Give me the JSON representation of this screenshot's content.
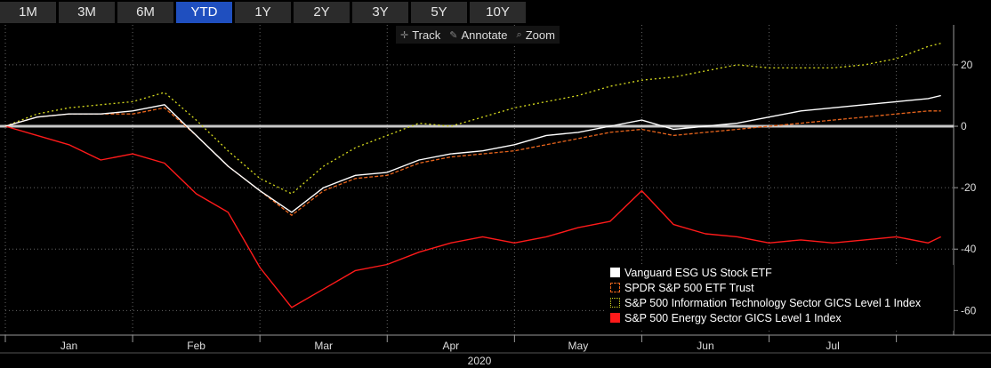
{
  "range_buttons": [
    "1M",
    "3M",
    "6M",
    "YTD",
    "1Y",
    "2Y",
    "3Y",
    "5Y",
    "10Y"
  ],
  "active_range": "YTD",
  "toolbar": {
    "track": "Track",
    "annotate": "Annotate",
    "zoom": "Zoom"
  },
  "colors": {
    "esg": "#ffffff",
    "spdr": "#e8641c",
    "it": "#d8dc1e",
    "energy": "#ff1a1a",
    "zero": "#c8c8c8",
    "grid": "#666666",
    "active_tab": "#1f4fbf"
  },
  "legend": [
    {
      "label": "Vanguard ESG US Stock ETF",
      "style": "solid-white"
    },
    {
      "label": "SPDR S&P 500 ETF Trust",
      "style": "dashed-orange"
    },
    {
      "label": "S&P 500 Information Technology Sector GICS Level 1 Index",
      "style": "dotted-yellow"
    },
    {
      "label": "S&P 500 Energy Sector GICS Level 1 Index",
      "style": "solid-red"
    }
  ],
  "chart_data": {
    "type": "line",
    "xlabel": "2020",
    "ylabel": "",
    "x_tick_labels": [
      "Jan",
      "Feb",
      "Mar",
      "Apr",
      "May",
      "Jun",
      "Jul"
    ],
    "y_tick_labels": [
      "20",
      "0",
      "-20",
      "-40",
      "-60"
    ],
    "ylim": [
      -68,
      33
    ],
    "xlim": [
      0,
      7.45
    ],
    "grid": true,
    "legend_position": "bottom-right",
    "x": [
      0,
      0.25,
      0.5,
      0.75,
      1.0,
      1.25,
      1.5,
      1.75,
      2.0,
      2.25,
      2.5,
      2.75,
      3.0,
      3.25,
      3.5,
      3.75,
      4.0,
      4.25,
      4.5,
      4.75,
      5.0,
      5.25,
      5.5,
      5.75,
      6.0,
      6.25,
      6.5,
      6.75,
      7.0,
      7.25,
      7.35
    ],
    "series": [
      {
        "name": "Vanguard ESG US Stock ETF",
        "key": "esg",
        "values": [
          0,
          3,
          4,
          4,
          5,
          7,
          -3,
          -13,
          -21,
          -28,
          -20,
          -16,
          -15,
          -11,
          -9,
          -8,
          -6,
          -3,
          -2,
          0,
          2,
          -1,
          0,
          1,
          3,
          5,
          6,
          7,
          8,
          9,
          10
        ]
      },
      {
        "name": "SPDR S&P 500 ETF Trust",
        "key": "spdr",
        "values": [
          0,
          3,
          4,
          4,
          4,
          6,
          -3,
          -13,
          -21,
          -29,
          -21,
          -17,
          -16,
          -12,
          -10,
          -9,
          -8,
          -6,
          -4,
          -2,
          -1,
          -3,
          -2,
          -1,
          0,
          1,
          2,
          3,
          4,
          5,
          5
        ]
      },
      {
        "name": "S&P 500 Information Technology Sector GICS Level 1 Index",
        "key": "it",
        "values": [
          0,
          4,
          6,
          7,
          8,
          11,
          2,
          -8,
          -17,
          -22,
          -13,
          -7,
          -3,
          1,
          0,
          3,
          6,
          8,
          10,
          13,
          15,
          16,
          18,
          20,
          19,
          19,
          19,
          20,
          22,
          26,
          27
        ]
      },
      {
        "name": "S&P 500 Energy Sector GICS Level 1 Index",
        "key": "energy",
        "values": [
          0,
          -3,
          -6,
          -11,
          -9,
          -12,
          -22,
          -28,
          -46,
          -59,
          -53,
          -47,
          -45,
          -41,
          -38,
          -36,
          -38,
          -36,
          -33,
          -31,
          -21,
          -32,
          -35,
          -36,
          -38,
          -37,
          -38,
          -37,
          -36,
          -38,
          -36
        ]
      }
    ]
  }
}
